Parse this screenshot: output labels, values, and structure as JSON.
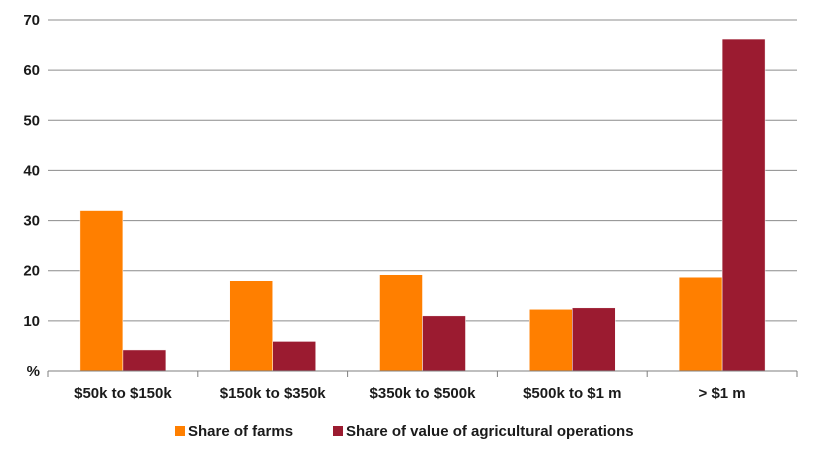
{
  "chart_data": {
    "type": "bar",
    "title": "",
    "xlabel": "",
    "ylabel": "",
    "y_unit_label": "%",
    "categories": [
      "$50k to $150k",
      "$150k to $350k",
      "$350k to $500k",
      "$500k to $1 m",
      "> $1 m"
    ],
    "series": [
      {
        "name": "Share of farms",
        "color": "#FF7F00",
        "values": [
          32,
          18,
          19.2,
          12.3,
          18.7
        ]
      },
      {
        "name": "Share of value of agricultural operations",
        "color": "#9B1B30",
        "values": [
          4.2,
          5.9,
          11,
          12.6,
          66.2
        ]
      }
    ],
    "ylim": [
      0,
      70
    ],
    "y_ticks": [
      10,
      20,
      30,
      40,
      50,
      60,
      70
    ],
    "grid": true,
    "legend_position": "bottom"
  }
}
